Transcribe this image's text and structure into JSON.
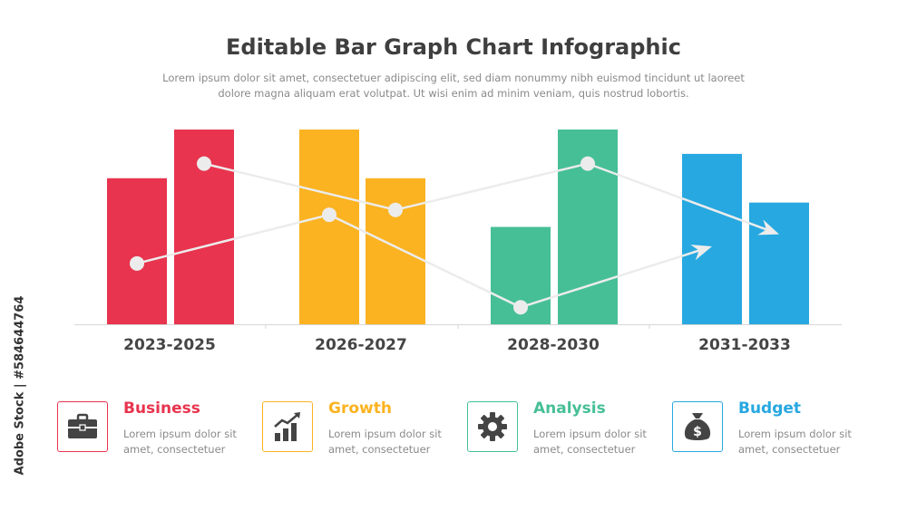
{
  "title": "Editable Bar Graph Chart Infographic",
  "subtitle": "Lorem ipsum dolor sit amet, consectetuer adipiscing elit, sed diam nonummy nibh euismod tincidunt ut laoreet dolore magna aliquam erat volutpat. Ut wisi enim ad minim veniam, quis nostrud lobortis.",
  "side_text": "Adobe Stock | #584644764",
  "chart_data": {
    "type": "bar",
    "categories": [
      "2023-2025",
      "2026-2027",
      "2028-2030",
      "2031-2033"
    ],
    "colors": [
      "#e8344e",
      "#fbb321",
      "#46bf96",
      "#27a8e0"
    ],
    "series": [
      {
        "values": [
          60,
          80,
          40,
          70
        ]
      },
      {
        "values": [
          80,
          60,
          80,
          50
        ]
      }
    ],
    "ylim": [
      0,
      80
    ],
    "trend_lines": [
      {
        "points": [
          [
            0,
            0,
            25
          ],
          [
            1,
            0,
            45
          ],
          [
            2,
            0,
            7
          ],
          [
            3,
            0,
            32
          ]
        ],
        "arrow": true
      },
      {
        "points": [
          [
            0,
            1,
            66
          ],
          [
            1,
            1,
            47
          ],
          [
            2,
            1,
            66
          ],
          [
            3,
            1,
            37
          ]
        ],
        "arrow": true
      }
    ],
    "grid": false,
    "legend": "bottom"
  },
  "legend": [
    {
      "title": "Business",
      "text": "Lorem ipsum dolor sit amet, consectetuer",
      "color": "#e8344e",
      "icon": "briefcase-icon"
    },
    {
      "title": "Growth",
      "text": "Lorem ipsum dolor sit amet, consectetuer",
      "color": "#fbb321",
      "icon": "growth-chart-icon"
    },
    {
      "title": "Analysis",
      "text": "Lorem ipsum dolor sit amet, consectetuer",
      "color": "#46bf96",
      "icon": "gear-icon"
    },
    {
      "title": "Budget",
      "text": "Lorem ipsum dolor sit amet, consectetuer",
      "color": "#27a8e0",
      "icon": "money-bag-icon"
    }
  ]
}
